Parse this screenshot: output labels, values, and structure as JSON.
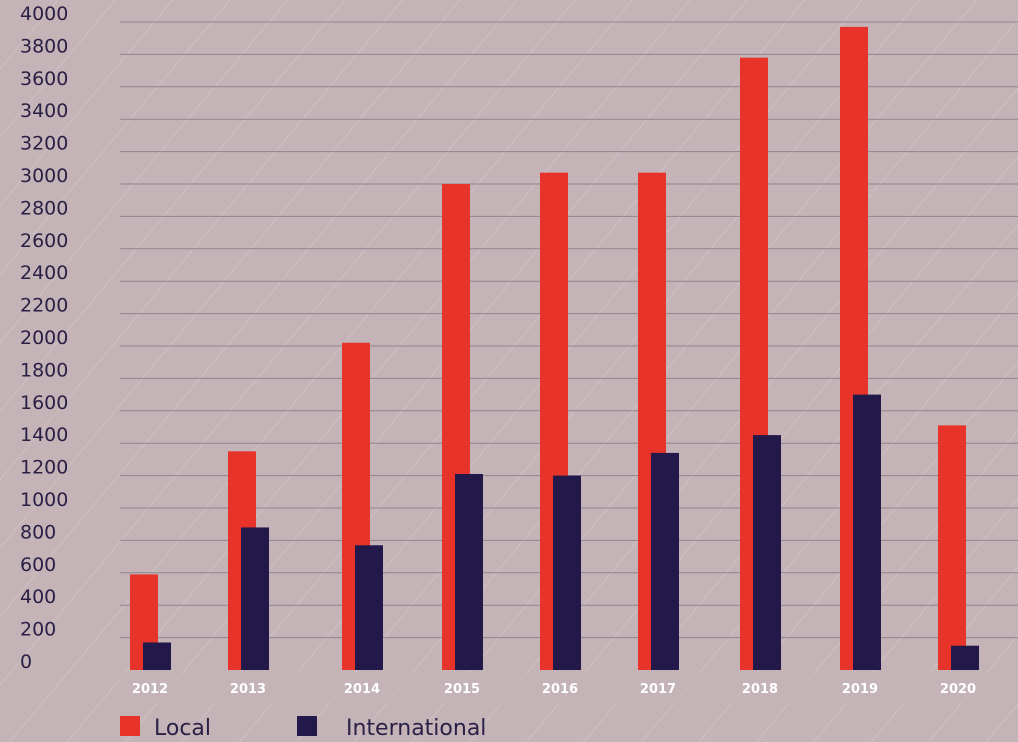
{
  "chart_data": {
    "type": "bar",
    "categories": [
      "2012",
      "2013",
      "2014",
      "2015",
      "2016",
      "2017",
      "2018",
      "2019",
      "2020"
    ],
    "series": [
      {
        "name": "Local",
        "color": "#e8332b",
        "values": [
          590,
          1350,
          2020,
          3000,
          3070,
          3070,
          3780,
          3970,
          1510
        ]
      },
      {
        "name": "International",
        "color": "#22194a",
        "values": [
          170,
          880,
          770,
          1210,
          1200,
          1340,
          1450,
          1700,
          150
        ]
      }
    ],
    "yticks": [
      "0",
      "200",
      "400",
      "600",
      "800",
      "1000",
      "1200",
      "1400",
      "1600",
      "1800",
      "2000",
      "2200",
      "2400",
      "2600",
      "2800",
      "3000",
      "3200",
      "3400",
      "3600",
      "3800",
      "4000"
    ],
    "ylim": [
      0,
      4000
    ],
    "grid": true,
    "legend_position": "bottom-left"
  }
}
